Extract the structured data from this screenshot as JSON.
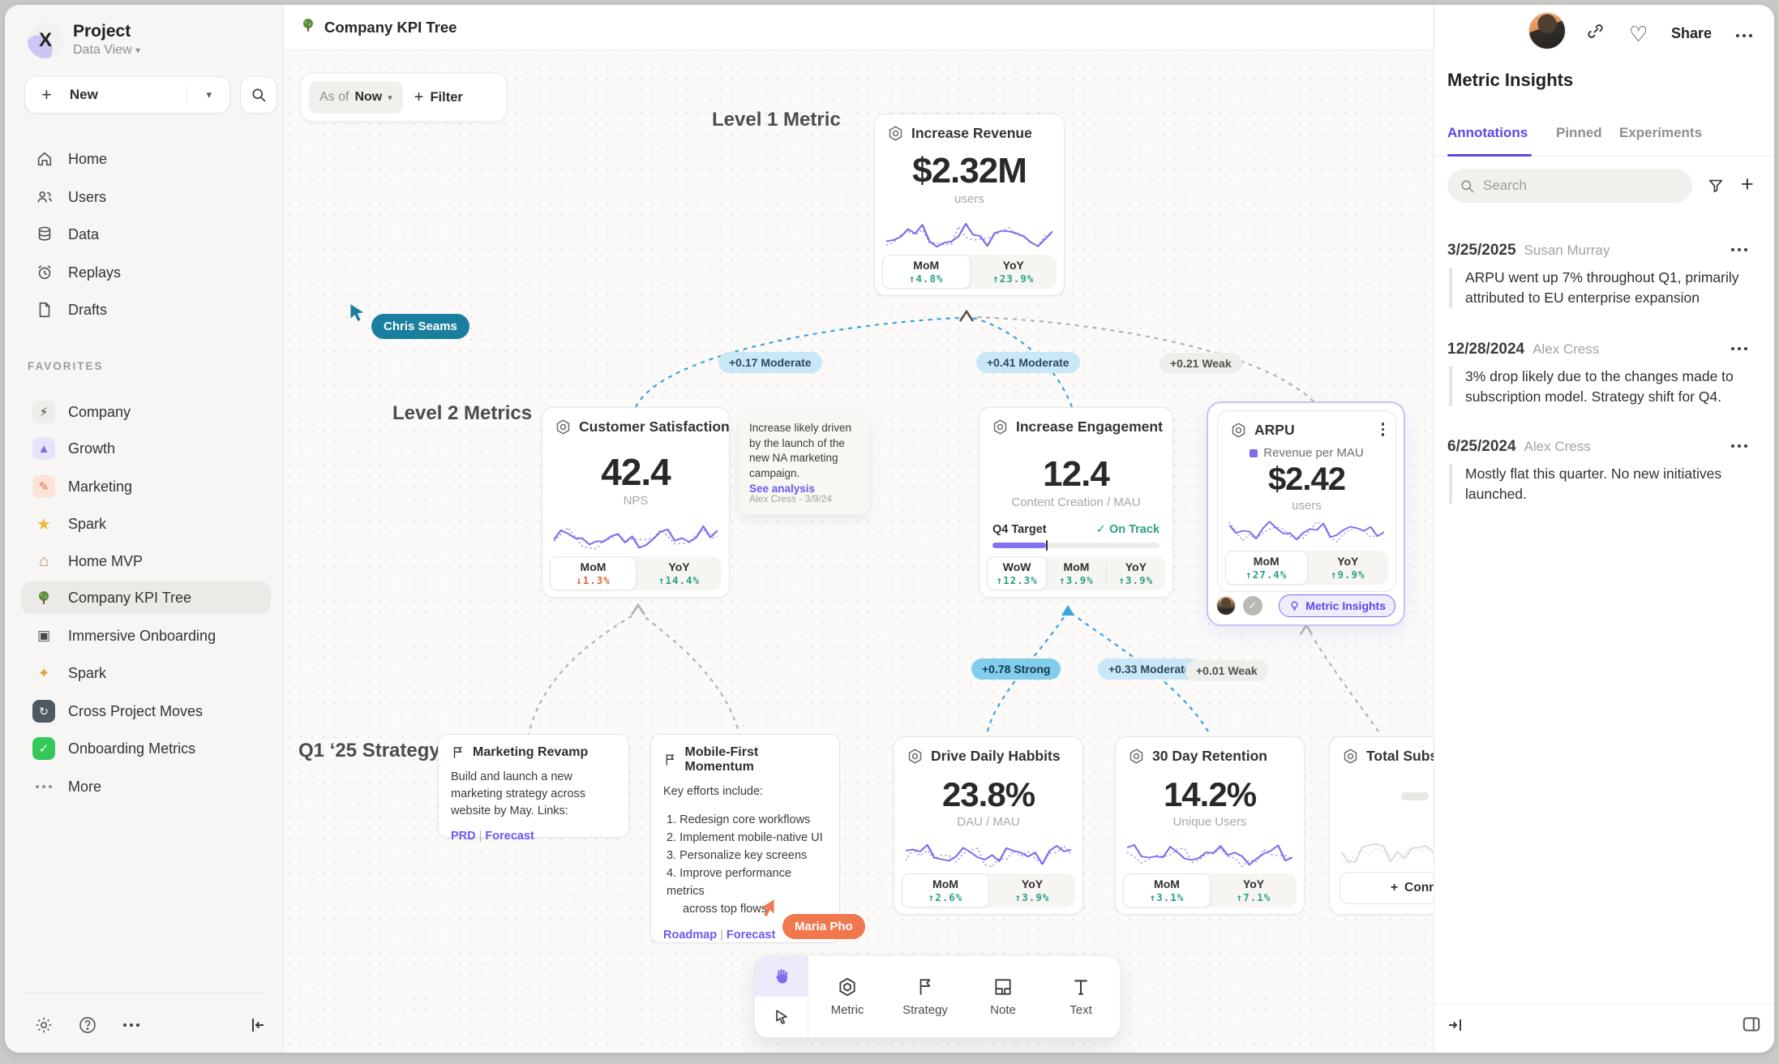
{
  "colors": {
    "accent_purple": "#6a5af0",
    "spark_purple": "#7b6cf0",
    "positive_green": "#2aa183",
    "negative_orange": "#e0633c",
    "edge_blue": "#38a3de",
    "cursor_teal": "#1a7f9e",
    "cursor_orange": "#f0774e"
  },
  "sidebar": {
    "project_title": "Project",
    "workspace_label": "Data View",
    "new_button_label": "New",
    "nav": [
      {
        "label": "Home"
      },
      {
        "label": "Users"
      },
      {
        "label": "Data"
      },
      {
        "label": "Replays"
      },
      {
        "label": "Drafts"
      }
    ],
    "favorites_heading": "FAVORITES",
    "favorites": [
      {
        "label": "Company"
      },
      {
        "label": "Growth"
      },
      {
        "label": "Marketing"
      },
      {
        "label": "Spark"
      },
      {
        "label": "Home MVP"
      },
      {
        "label": "Company KPI Tree"
      },
      {
        "label": "Immersive Onboarding"
      },
      {
        "label": "Spark"
      },
      {
        "label": "Cross Project Moves"
      },
      {
        "label": "Onboarding Metrics"
      }
    ],
    "more_label": "More"
  },
  "topbar": {
    "title": "Company KPI Tree",
    "as_of_label": "As of",
    "as_of_value": "Now",
    "filter_label": "Filter",
    "share_label": "Share"
  },
  "canvas": {
    "level1_label": "Level 1 Metric",
    "level2_label": "Level 2 Metrics",
    "strategy_label": "Q1 ‘25 Strategy",
    "cursors": [
      {
        "name": "Chris Seams"
      },
      {
        "name": "Maria Pho"
      }
    ],
    "edges": [
      {
        "label": "+0.17 Moderate"
      },
      {
        "label": "+0.41 Moderate"
      },
      {
        "label": "+0.21 Weak"
      },
      {
        "label": "+0.78 Strong"
      },
      {
        "label": "+0.33 Moderate"
      },
      {
        "label": "+0.01 Weak"
      }
    ],
    "metrics": {
      "revenue": {
        "title": "Increase Revenue",
        "value": "$2.32M",
        "unit": "users",
        "stats": [
          {
            "label": "MoM",
            "delta": "↑4.8%"
          },
          {
            "label": "YoY",
            "delta": "↑23.9%"
          }
        ]
      },
      "satisfaction": {
        "title": "Customer Satisfaction",
        "value": "42.4",
        "unit": "NPS",
        "stats": [
          {
            "label": "MoM",
            "delta": "↓1.3%"
          },
          {
            "label": "YoY",
            "delta": "↑14.4%"
          }
        ]
      },
      "engagement": {
        "title": "Increase Engagement",
        "value": "12.4",
        "unit": "Content Creation / MAU",
        "target_label": "Q4 Target",
        "target_status": "On Track",
        "stats": [
          {
            "label": "WoW",
            "delta": "↑12.3%"
          },
          {
            "label": "MoM",
            "delta": "↑3.9%"
          },
          {
            "label": "YoY",
            "delta": "↑3.9%"
          }
        ]
      },
      "arpu": {
        "title": "ARPU",
        "legend": "Revenue per MAU",
        "value": "$2.42",
        "unit": "users",
        "stats": [
          {
            "label": "MoM",
            "delta": "↑27.4%"
          },
          {
            "label": "YoY",
            "delta": "↑9.9%"
          }
        ],
        "insights_button": "Metric Insights"
      },
      "daily": {
        "title": "Drive Daily Habbits",
        "value": "23.8%",
        "unit": "DAU / MAU",
        "stats": [
          {
            "label": "MoM",
            "delta": "↑2.6%"
          },
          {
            "label": "YoY",
            "delta": "↑3.9%"
          }
        ]
      },
      "retention": {
        "title": "30 Day Retention",
        "value": "14.2%",
        "unit": "Unique Users",
        "stats": [
          {
            "label": "MoM",
            "delta": "↑3.1%"
          },
          {
            "label": "YoY",
            "delta": "↑7.1%"
          }
        ]
      },
      "subscriptions": {
        "title": "Total Subscript",
        "connect_label": "Connect"
      }
    },
    "note": {
      "text": "Increase likely driven by the launch of the new NA marketing campaign.",
      "link": "See analysis",
      "author": "Alex Cress - 3/9/24"
    },
    "strategies": {
      "marketing": {
        "title": "Marketing Revamp",
        "body": "Build and launch a new marketing strategy across website by May. Links:",
        "links": [
          "PRD",
          "Forecast"
        ]
      },
      "mobile": {
        "title": "Mobile-First Momentum",
        "intro": "Key efforts include:",
        "items": [
          "1. Redesign core workflows",
          "2. Implement mobile-native UI",
          "3. Personalize key screens",
          "4. Improve performance metrics",
          "across top flows"
        ],
        "links": [
          "Roadmap",
          "Forecast"
        ]
      }
    },
    "toolbar": {
      "tools": [
        {
          "label": "Metric"
        },
        {
          "label": "Strategy"
        },
        {
          "label": "Note"
        },
        {
          "label": "Text"
        }
      ]
    }
  },
  "insights_panel": {
    "title": "Metric Insights",
    "tabs": [
      {
        "label": "Annotations"
      },
      {
        "label": "Pinned"
      },
      {
        "label": "Experiments"
      }
    ],
    "active_tab": "Annotations",
    "search_placeholder": "Search",
    "annotations": [
      {
        "date": "3/25/2025",
        "author": "Susan Murray",
        "text": "ARPU went up 7% throughout Q1, primarily attributed to EU enterprise expansion"
      },
      {
        "date": "12/28/2024",
        "author": "Alex Cress",
        "text": "3% drop likely due to the changes made to subscription model. Strategy shift for Q4."
      },
      {
        "date": "6/25/2024",
        "author": "Alex Cress",
        "text": "Mostly flat this quarter. No new initiatives launched."
      }
    ]
  }
}
